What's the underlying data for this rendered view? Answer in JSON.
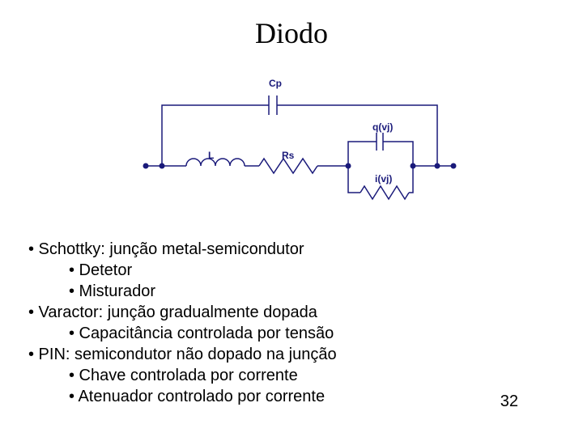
{
  "title": "Diodo",
  "circuit": {
    "stroke": "#1a1a7a",
    "stroke_width": 1.5,
    "labels": {
      "Cp": "Cp",
      "qvj": "q(vj)",
      "L": "L",
      "Rs": "Rs",
      "ivj": "i(vj)"
    }
  },
  "bullets": [
    {
      "level": 0,
      "text": "Schottky: junção metal-semicondutor"
    },
    {
      "level": 1,
      "text": "Detetor"
    },
    {
      "level": 1,
      "text": "Misturador"
    },
    {
      "level": 0,
      "text": "Varactor: junção gradualmente dopada"
    },
    {
      "level": 1,
      "text": "Capacitância controlada por tensão"
    },
    {
      "level": 0,
      "text": "PIN: semicondutor não dopado na junção"
    },
    {
      "level": 1,
      "text": "Chave controlada por corrente"
    },
    {
      "level": 1,
      "text": "Atenuador controlado por corrente"
    }
  ],
  "page_number": "32"
}
